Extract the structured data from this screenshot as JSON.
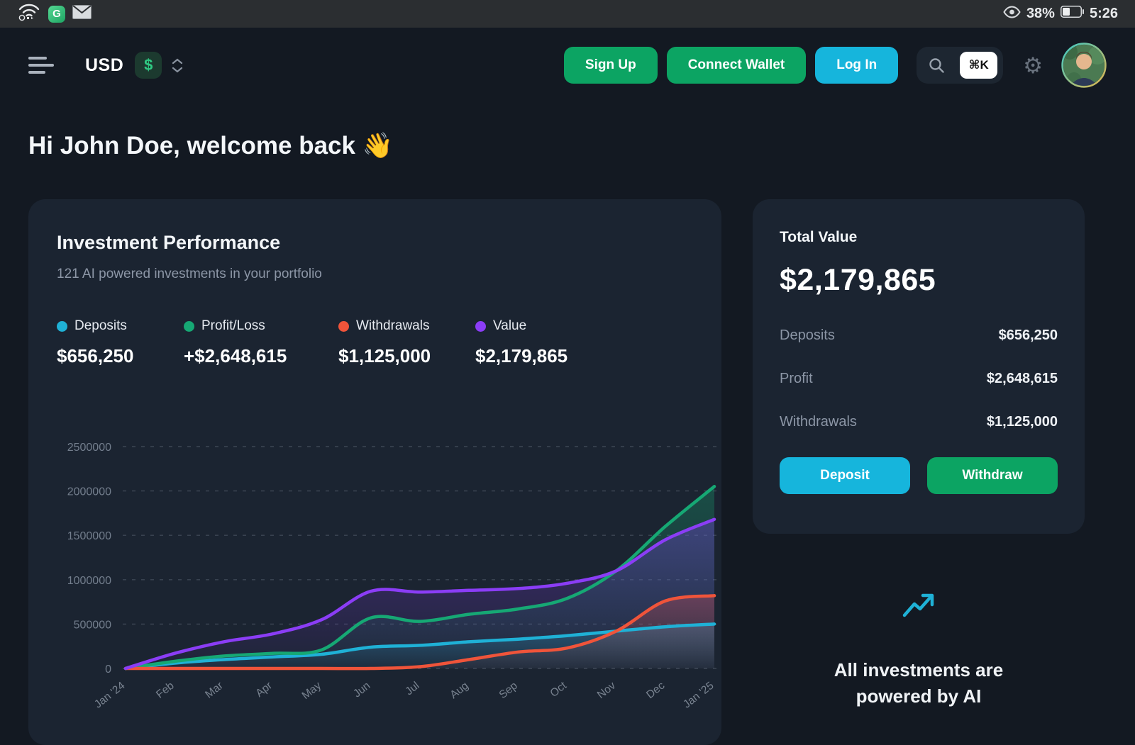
{
  "status_bar": {
    "battery": "38%",
    "time": "5:26"
  },
  "header": {
    "currency": "USD",
    "currency_symbol": "$",
    "sign_up": "Sign Up",
    "connect_wallet": "Connect Wallet",
    "log_in": "Log In",
    "search_shortcut": "⌘K",
    "gear_glyph": "⚙"
  },
  "greeting": "Hi John Doe, welcome back 👋",
  "performance_card": {
    "title": "Investment Performance",
    "subtitle": "121 AI powered investments in your portfolio",
    "legend": [
      {
        "label": "Deposits",
        "value": "$656,250",
        "color": "#1fb1d6"
      },
      {
        "label": "Profit/Loss",
        "value": "+$2,648,615",
        "color": "#16a874"
      },
      {
        "label": "Withdrawals",
        "value": "$1,125,000",
        "color": "#f0543a"
      },
      {
        "label": "Value",
        "value": "$2,179,865",
        "color": "#8b3df6"
      }
    ]
  },
  "chart_data": {
    "type": "area",
    "title": "Investment Performance",
    "categories": [
      "Jan '24",
      "Feb",
      "Mar",
      "Apr",
      "May",
      "Jun",
      "Jul",
      "Aug",
      "Sep",
      "Oct",
      "Nov",
      "Dec",
      "Jan '25"
    ],
    "series": [
      {
        "name": "Deposits",
        "color": "#1fb1d6",
        "values": [
          0,
          60000,
          100000,
          130000,
          160000,
          240000,
          260000,
          300000,
          330000,
          370000,
          420000,
          470000,
          500000
        ]
      },
      {
        "name": "Profit/Loss",
        "color": "#16a874",
        "values": [
          0,
          80000,
          140000,
          170000,
          210000,
          570000,
          530000,
          610000,
          670000,
          790000,
          1100000,
          1600000,
          2050000
        ]
      },
      {
        "name": "Withdrawals",
        "color": "#f0543a",
        "values": [
          0,
          0,
          0,
          0,
          0,
          0,
          20000,
          100000,
          185000,
          230000,
          420000,
          760000,
          820000
        ]
      },
      {
        "name": "Value",
        "color": "#8b3df6",
        "values": [
          0,
          170000,
          300000,
          390000,
          550000,
          870000,
          860000,
          880000,
          900000,
          960000,
          1100000,
          1450000,
          1680000
        ]
      }
    ],
    "ylim": [
      0,
      2500000
    ],
    "yticks": [
      0,
      500000,
      1000000,
      1500000,
      2000000,
      2500000
    ],
    "xlabel": "",
    "ylabel": "",
    "grid": "dashed horizontal",
    "legend_position": "above chart"
  },
  "total_card": {
    "title": "Total Value",
    "amount": "$2,179,865",
    "rows": [
      {
        "label": "Deposits",
        "value": "$656,250"
      },
      {
        "label": "Profit",
        "value": "$2,648,615"
      },
      {
        "label": "Withdrawals",
        "value": "$1,125,000"
      }
    ],
    "deposit_label": "Deposit",
    "withdraw_label": "Withdraw"
  },
  "ai_banner": {
    "line1": "All investments are",
    "line2": "powered by AI"
  },
  "colors": {
    "background": "#131922",
    "status_bar": "#2b2e31",
    "card": "#1b2431",
    "text": "#f3f6f9",
    "muted": "#8c96a6",
    "axis": "#76808f",
    "green_button": "#0ca463",
    "cyan_button": "#16b5dc"
  }
}
